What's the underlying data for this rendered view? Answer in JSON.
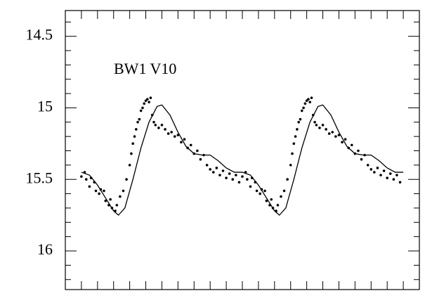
{
  "chart_data": {
    "type": "line",
    "annotation": "BW1 V10",
    "xlim": [
      -0.1,
      2.1
    ],
    "xticks": [
      0,
      0.1,
      0.2,
      0.3,
      0.4,
      0.5,
      0.6,
      0.7,
      0.8,
      0.9,
      1,
      1.1,
      1.2,
      1.3,
      1.4,
      1.5,
      1.6,
      1.7,
      1.8,
      1.9,
      2
    ],
    "ylim": [
      16.27,
      14.32
    ],
    "yticks": [
      14.5,
      15,
      15.5,
      16
    ],
    "yminorticks": [
      14.4,
      14.6,
      14.7,
      14.8,
      14.9,
      15.1,
      15.2,
      15.3,
      15.4,
      15.6,
      15.7,
      15.8,
      15.9,
      16.1,
      16.2
    ],
    "series": [
      {
        "type": "line",
        "color": "#000000",
        "x": [
          0,
          0.05,
          0.1,
          0.15,
          0.2,
          0.23,
          0.27,
          0.32,
          0.37,
          0.42,
          0.47,
          0.5,
          0.55,
          0.6,
          0.65,
          0.7,
          0.75,
          0.8,
          0.85,
          0.9,
          0.95,
          1,
          1.05,
          1.1,
          1.15,
          1.2,
          1.23,
          1.27,
          1.32,
          1.37,
          1.42,
          1.47,
          1.5,
          1.55,
          1.6,
          1.65,
          1.7,
          1.75,
          1.8,
          1.85,
          1.9,
          1.95,
          2
        ],
        "values": [
          15.45,
          15.47,
          15.54,
          15.63,
          15.72,
          15.75,
          15.7,
          15.5,
          15.28,
          15.1,
          14.99,
          14.98,
          15.05,
          15.17,
          15.27,
          15.32,
          15.33,
          15.33,
          15.37,
          15.42,
          15.45,
          15.45,
          15.47,
          15.54,
          15.63,
          15.72,
          15.75,
          15.7,
          15.5,
          15.28,
          15.1,
          14.99,
          14.98,
          15.05,
          15.17,
          15.27,
          15.32,
          15.33,
          15.33,
          15.37,
          15.42,
          15.45,
          15.45
        ]
      },
      {
        "type": "scatter",
        "color": "#000000",
        "x": [
          0,
          0.02,
          0.03,
          0.05,
          0.06,
          0.08,
          0.09,
          0.11,
          0.12,
          0.14,
          0.15,
          0.17,
          0.18,
          0.19,
          0.21,
          0.22,
          0.24,
          0.26,
          0.28,
          0.3,
          0.31,
          0.32,
          0.33,
          0.34,
          0.35,
          0.36,
          0.37,
          0.38,
          0.39,
          0.4,
          0.41,
          0.42,
          0.43,
          0.44,
          0.45,
          0.46,
          0.48,
          0.5,
          0.52,
          0.54,
          0.56,
          0.58,
          0.6,
          0.62,
          0.64,
          0.66,
          0.68,
          0.7,
          0.72,
          0.74,
          0.76,
          0.78,
          0.8,
          0.82,
          0.84,
          0.86,
          0.88,
          0.9,
          0.92,
          0.94,
          0.96,
          0.98,
          1,
          1.02,
          1.03,
          1.05,
          1.06,
          1.08,
          1.09,
          1.11,
          1.12,
          1.14,
          1.15,
          1.17,
          1.18,
          1.19,
          1.21,
          1.22,
          1.24,
          1.26,
          1.28,
          1.3,
          1.31,
          1.32,
          1.33,
          1.34,
          1.35,
          1.36,
          1.37,
          1.38,
          1.39,
          1.4,
          1.41,
          1.42,
          1.43,
          1.44,
          1.45,
          1.46,
          1.48,
          1.5,
          1.52,
          1.54,
          1.56,
          1.58,
          1.6,
          1.62,
          1.64,
          1.66,
          1.68,
          1.7,
          1.72,
          1.74,
          1.76,
          1.78,
          1.8,
          1.82,
          1.84,
          1.86,
          1.88,
          1.9,
          1.92,
          1.94,
          1.96,
          1.98
        ],
        "values": [
          15.48,
          15.45,
          15.5,
          15.55,
          15.49,
          15.52,
          15.58,
          15.6,
          15.57,
          15.58,
          15.65,
          15.68,
          15.64,
          15.7,
          15.72,
          15.68,
          15.62,
          15.58,
          15.5,
          15.4,
          15.32,
          15.25,
          15.2,
          15.15,
          15.1,
          15.08,
          15.02,
          15,
          14.97,
          14.95,
          14.94,
          14.96,
          14.93,
          15.05,
          15.1,
          15.12,
          15.14,
          15.12,
          15.15,
          15.18,
          15.17,
          15.2,
          15.19,
          15.24,
          15.22,
          15.28,
          15.26,
          15.32,
          15.3,
          15.36,
          15.33,
          15.4,
          15.43,
          15.45,
          15.42,
          15.47,
          15.44,
          15.49,
          15.46,
          15.5,
          15.47,
          15.52,
          15.48,
          15.45,
          15.5,
          15.55,
          15.49,
          15.52,
          15.58,
          15.6,
          15.57,
          15.58,
          15.65,
          15.68,
          15.64,
          15.7,
          15.72,
          15.68,
          15.62,
          15.58,
          15.5,
          15.4,
          15.32,
          15.25,
          15.2,
          15.15,
          15.1,
          15.08,
          15.02,
          15,
          14.97,
          14.95,
          14.94,
          14.96,
          14.93,
          15.05,
          15.1,
          15.12,
          15.14,
          15.12,
          15.15,
          15.18,
          15.17,
          15.2,
          15.19,
          15.24,
          15.22,
          15.28,
          15.26,
          15.32,
          15.3,
          15.36,
          15.33,
          15.4,
          15.43,
          15.45,
          15.42,
          15.47,
          15.44,
          15.49,
          15.46,
          15.5,
          15.47,
          15.52
        ]
      }
    ]
  }
}
